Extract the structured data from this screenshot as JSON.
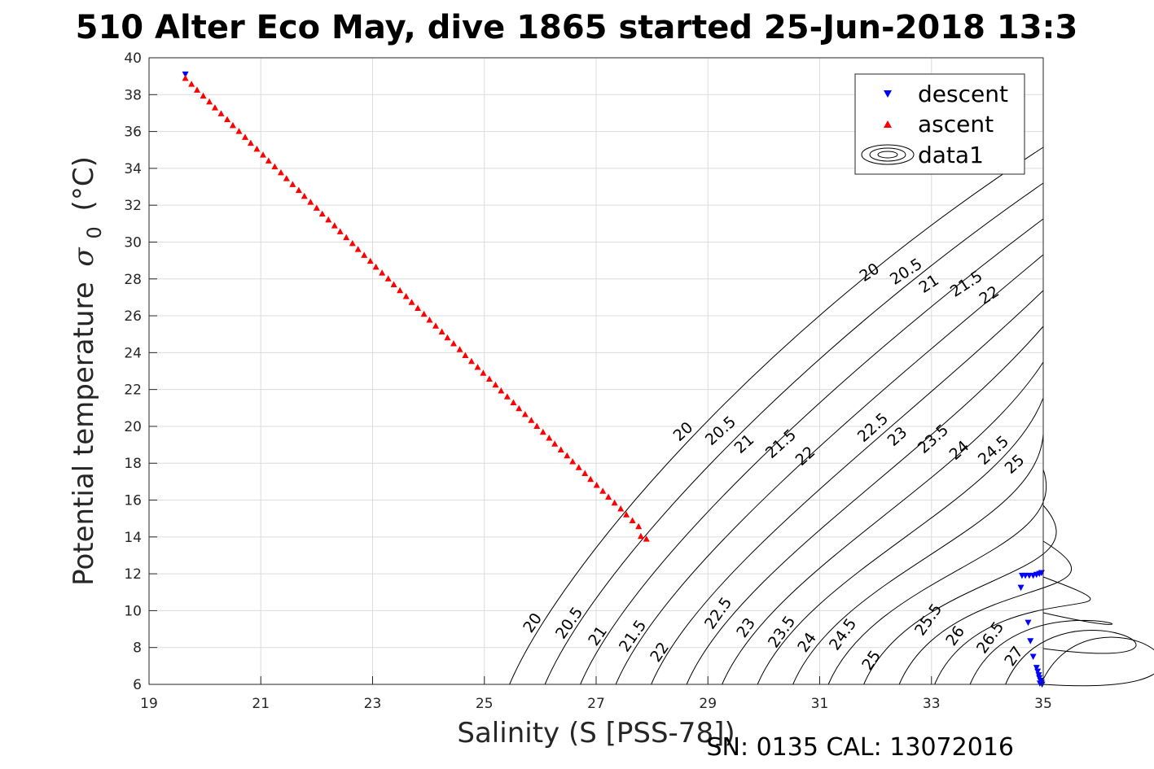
{
  "chart_data": {
    "type": "scatter",
    "title": "510 Alter Eco May, dive 1865 started 25-Jun-2018 13:3",
    "xlabel": "Salinity (S [PSS-78])",
    "ylabel": "Potential temperature",
    "ylabel_symbol": "σ",
    "ylabel_subscript": "0",
    "ylabel_unit": "(°C)",
    "xlim": [
      19,
      35
    ],
    "ylim": [
      6,
      40
    ],
    "xticks": [
      "19",
      "21",
      "23",
      "25",
      "27",
      "29",
      "31",
      "33",
      "35"
    ],
    "yticks": [
      "6",
      "8",
      "10",
      "12",
      "14",
      "16",
      "18",
      "20",
      "22",
      "24",
      "26",
      "28",
      "30",
      "32",
      "34",
      "36",
      "38",
      "40"
    ],
    "grid": true,
    "legend_position": "top-right",
    "legend": [
      {
        "label": "descent",
        "marker": "triangle-down",
        "color": "#0000ff"
      },
      {
        "label": "ascent",
        "marker": "triangle-up",
        "color": "#ff0000"
      },
      {
        "label": "data1",
        "marker": "contour",
        "color": "#000000"
      }
    ],
    "series": [
      {
        "name": "descent",
        "marker": "triangle-down",
        "color": "#0000ff",
        "points": [
          [
            19.65,
            39.1
          ],
          [
            34.62,
            11.9
          ],
          [
            34.68,
            11.9
          ],
          [
            34.75,
            11.9
          ],
          [
            34.82,
            11.9
          ],
          [
            34.88,
            11.95
          ],
          [
            34.93,
            12.0
          ],
          [
            34.97,
            12.05
          ],
          [
            34.6,
            11.25
          ],
          [
            34.73,
            9.35
          ],
          [
            34.77,
            8.35
          ],
          [
            34.82,
            7.5
          ],
          [
            34.88,
            6.9
          ],
          [
            34.9,
            6.7
          ],
          [
            34.92,
            6.5
          ],
          [
            34.93,
            6.35
          ],
          [
            34.95,
            6.2
          ],
          [
            34.97,
            6.1
          ],
          [
            34.98,
            6.0
          ],
          [
            34.94,
            6.05
          ]
        ]
      },
      {
        "name": "ascent",
        "marker": "triangle-up",
        "color": "#ff0000",
        "points": [
          [
            19.65,
            38.9
          ],
          [
            19.76,
            38.58
          ],
          [
            19.86,
            38.26
          ],
          [
            19.97,
            37.94
          ],
          [
            20.08,
            37.62
          ],
          [
            20.18,
            37.3
          ],
          [
            20.29,
            36.98
          ],
          [
            20.4,
            36.66
          ],
          [
            20.5,
            36.34
          ],
          [
            20.61,
            36.02
          ],
          [
            20.72,
            35.7
          ],
          [
            20.82,
            35.38
          ],
          [
            20.93,
            35.06
          ],
          [
            21.04,
            34.74
          ],
          [
            21.14,
            34.42
          ],
          [
            21.25,
            34.1
          ],
          [
            21.36,
            33.78
          ],
          [
            21.46,
            33.46
          ],
          [
            21.57,
            33.14
          ],
          [
            21.68,
            32.82
          ],
          [
            21.78,
            32.5
          ],
          [
            21.89,
            32.18
          ],
          [
            22.0,
            31.86
          ],
          [
            22.1,
            31.54
          ],
          [
            22.21,
            31.22
          ],
          [
            22.32,
            30.9
          ],
          [
            22.42,
            30.58
          ],
          [
            22.53,
            30.26
          ],
          [
            22.64,
            29.94
          ],
          [
            22.74,
            29.62
          ],
          [
            22.85,
            29.3
          ],
          [
            22.96,
            28.98
          ],
          [
            23.06,
            28.66
          ],
          [
            23.17,
            28.34
          ],
          [
            23.28,
            28.02
          ],
          [
            23.38,
            27.7
          ],
          [
            23.49,
            27.38
          ],
          [
            23.6,
            27.06
          ],
          [
            23.7,
            26.74
          ],
          [
            23.81,
            26.42
          ],
          [
            23.92,
            26.1
          ],
          [
            24.02,
            25.78
          ],
          [
            24.13,
            25.46
          ],
          [
            24.24,
            25.14
          ],
          [
            24.34,
            24.82
          ],
          [
            24.45,
            24.5
          ],
          [
            24.56,
            24.18
          ],
          [
            24.66,
            23.86
          ],
          [
            24.77,
            23.54
          ],
          [
            24.88,
            23.22
          ],
          [
            24.98,
            22.9
          ],
          [
            25.09,
            22.58
          ],
          [
            25.2,
            22.26
          ],
          [
            25.3,
            21.94
          ],
          [
            25.41,
            21.62
          ],
          [
            25.52,
            21.3
          ],
          [
            25.62,
            20.98
          ],
          [
            25.73,
            20.66
          ],
          [
            25.84,
            20.34
          ],
          [
            25.94,
            20.02
          ],
          [
            26.05,
            19.7
          ],
          [
            26.16,
            19.38
          ],
          [
            26.26,
            19.06
          ],
          [
            26.37,
            18.74
          ],
          [
            26.48,
            18.42
          ],
          [
            26.58,
            18.1
          ],
          [
            26.69,
            17.78
          ],
          [
            26.8,
            17.46
          ],
          [
            26.9,
            17.14
          ],
          [
            27.01,
            16.82
          ],
          [
            27.12,
            16.5
          ],
          [
            27.22,
            16.18
          ],
          [
            27.33,
            15.86
          ],
          [
            27.44,
            15.54
          ],
          [
            27.54,
            15.22
          ],
          [
            27.65,
            14.9
          ],
          [
            27.76,
            14.58
          ],
          [
            27.8,
            14.05
          ],
          [
            27.9,
            13.9
          ]
        ]
      }
    ],
    "contour_levels_lower": [
      "20",
      "20.5",
      "21",
      "21.5",
      "22",
      "22.5",
      "23",
      "23.5",
      "24",
      "24.5",
      "25",
      "25.5",
      "26",
      "26.5",
      "27"
    ],
    "contour_levels_upper_right": [
      "20",
      "20.5",
      "21",
      "21.5",
      "22"
    ],
    "contour_levels_middle": [
      "20",
      "20.5",
      "21",
      "21.5",
      "22",
      "22.5",
      "23",
      "23.5",
      "24",
      "24.5",
      "25"
    ],
    "footer": "SN: 0135  CAL: 13072016"
  }
}
